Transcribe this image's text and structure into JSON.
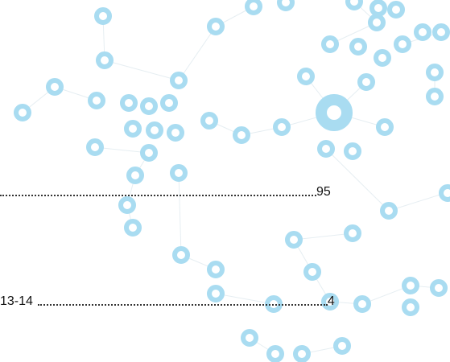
{
  "entries": [
    {
      "text": null,
      "page": "95"
    },
    {
      "text": "13-14",
      "page": "4"
    }
  ]
}
